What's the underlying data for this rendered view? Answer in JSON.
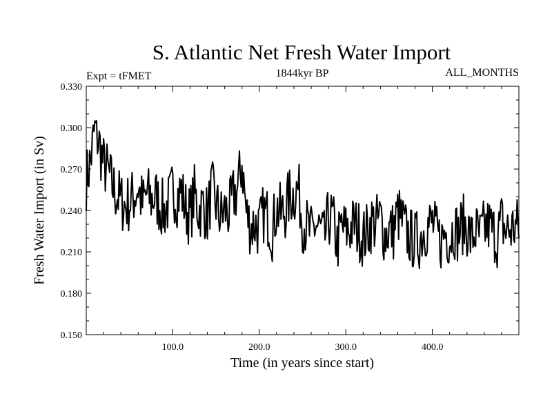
{
  "chart_data": {
    "type": "line",
    "title": "S. Atlantic Net Fresh Water Import",
    "subtitle_left": "Expt = tFMET",
    "subtitle_center": "1844kyr BP",
    "subtitle_right": "ALL_MONTHS",
    "xlabel": "Time (in years since start)",
    "ylabel": "Fresh Water Import (in Sv)",
    "xlim": [
      0,
      500
    ],
    "ylim": [
      0.15,
      0.33
    ],
    "x_ticks": [
      100,
      200,
      300,
      400
    ],
    "x_tick_labels": [
      "100.0",
      "200.0",
      "300.0",
      "400.0"
    ],
    "y_ticks": [
      0.15,
      0.18,
      0.21,
      0.24,
      0.27,
      0.3,
      0.33
    ],
    "y_tick_labels": [
      "0.150",
      "0.180",
      "0.210",
      "0.240",
      "0.270",
      "0.300",
      "0.330"
    ],
    "series": [
      {
        "name": "Fresh Water Import",
        "x_start": 0,
        "x_step": 5,
        "values": [
          0.262,
          0.276,
          0.3,
          0.288,
          0.273,
          0.268,
          0.258,
          0.252,
          0.247,
          0.243,
          0.246,
          0.25,
          0.257,
          0.244,
          0.252,
          0.248,
          0.25,
          0.244,
          0.239,
          0.245,
          0.255,
          0.25,
          0.254,
          0.241,
          0.236,
          0.252,
          0.24,
          0.244,
          0.236,
          0.255,
          0.245,
          0.235,
          0.24,
          0.238,
          0.25,
          0.255,
          0.275,
          0.238,
          0.228,
          0.23,
          0.227,
          0.238,
          0.235,
          0.225,
          0.242,
          0.237,
          0.24,
          0.25,
          0.252,
          0.256,
          0.232,
          0.228,
          0.222,
          0.23,
          0.226,
          0.218,
          0.235,
          0.233,
          0.215,
          0.228,
          0.225,
          0.227,
          0.23,
          0.226,
          0.22,
          0.225,
          0.232,
          0.23,
          0.235,
          0.222,
          0.226,
          0.225,
          0.238,
          0.232,
          0.224,
          0.22,
          0.218,
          0.219,
          0.226,
          0.229,
          0.231,
          0.222,
          0.218,
          0.225,
          0.22,
          0.228,
          0.223,
          0.23,
          0.228,
          0.219,
          0.225,
          0.22,
          0.227,
          0.229,
          0.225,
          0.22,
          0.232,
          0.225,
          0.226,
          0.228
        ]
      }
    ]
  }
}
